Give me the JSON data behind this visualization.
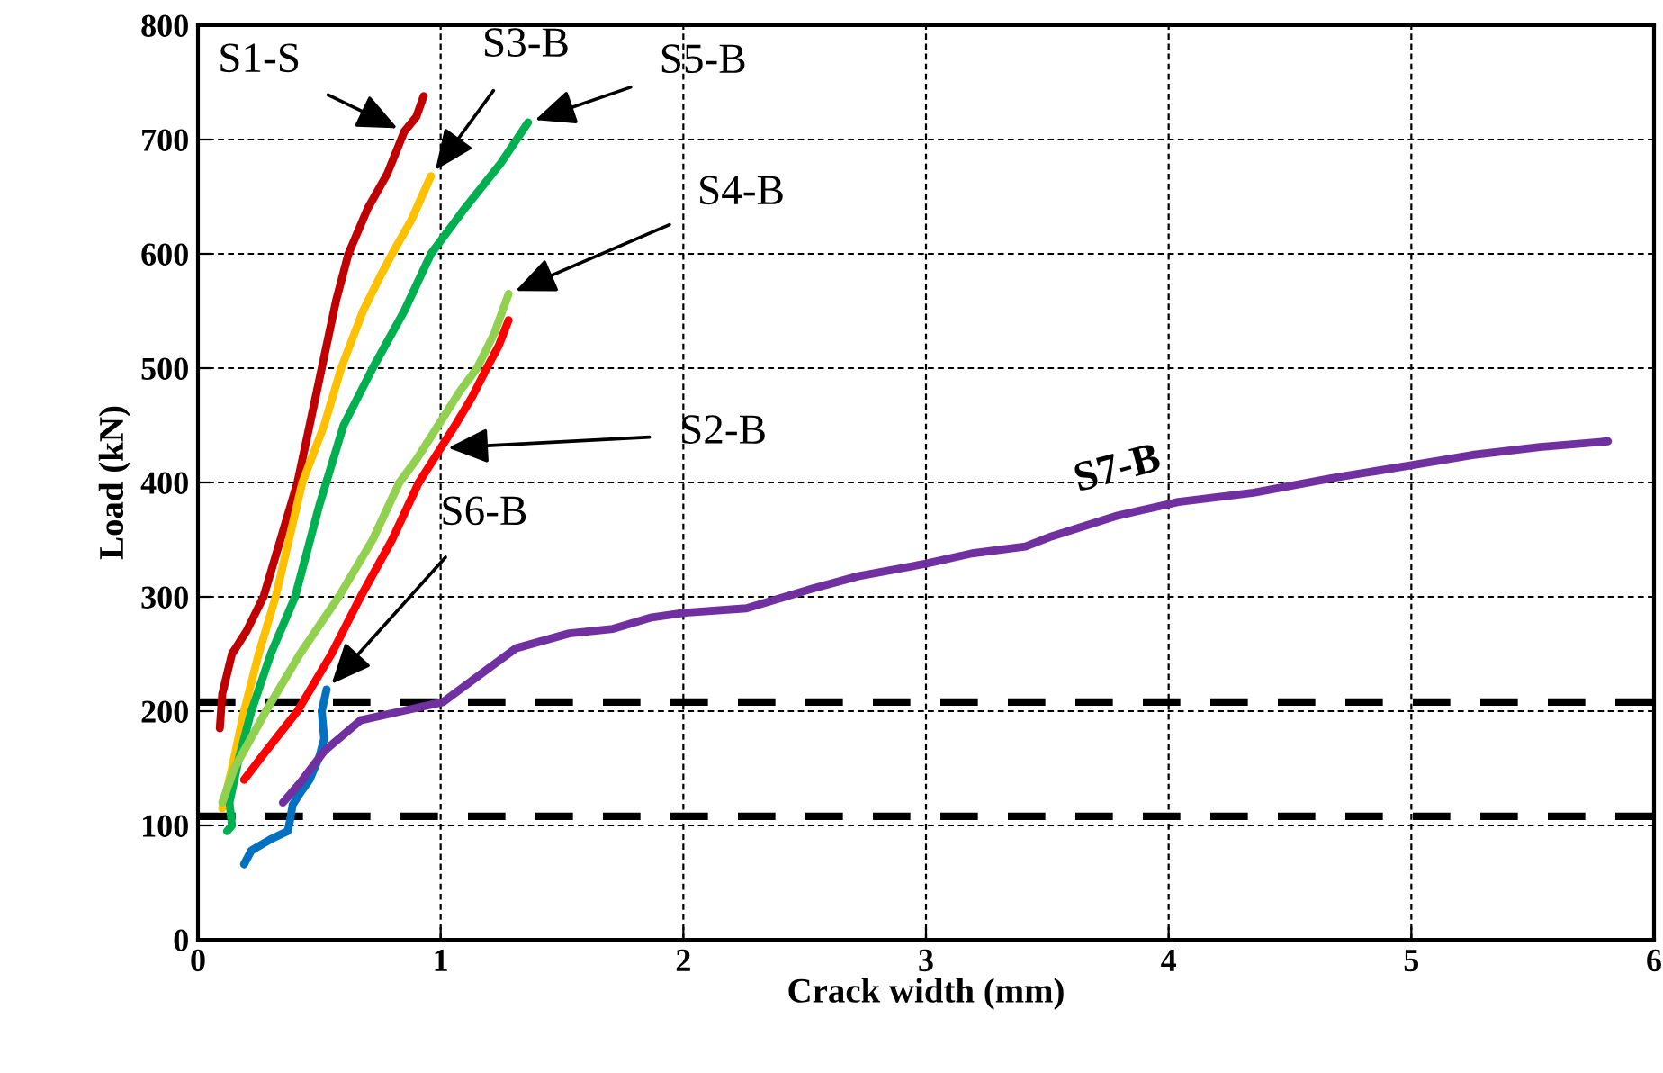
{
  "chart_data": {
    "type": "line",
    "xlabel": "Crack width (mm)",
    "ylabel": "Load (kN)",
    "xlim": [
      0,
      6
    ],
    "ylim": [
      0,
      800
    ],
    "xticks": [
      0,
      1,
      2,
      3,
      4,
      5,
      6
    ],
    "yticks": [
      0,
      100,
      200,
      300,
      400,
      500,
      600,
      700,
      800
    ],
    "grid": true,
    "legend": false,
    "marker": "none",
    "line_style": "solid",
    "ref_lines": [
      {
        "axis": "y",
        "value": 208,
        "color": "#000000",
        "line_style": "dashed"
      },
      {
        "axis": "y",
        "value": 108,
        "color": "#000000",
        "line_style": "dashed"
      }
    ],
    "series": [
      {
        "name": "S1-S",
        "color": "#c00000",
        "x": [
          0.09,
          0.1,
          0.14,
          0.2,
          0.27,
          0.34,
          0.41,
          0.46,
          0.51,
          0.57,
          0.62,
          0.7,
          0.78,
          0.85,
          0.9,
          0.93
        ],
        "values": [
          185,
          215,
          250,
          270,
          300,
          350,
          400,
          450,
          500,
          560,
          600,
          640,
          670,
          707,
          720,
          738
        ]
      },
      {
        "name": "S3-B",
        "color": "#ffc000",
        "x": [
          0.1,
          0.14,
          0.19,
          0.25,
          0.32,
          0.43,
          0.52,
          0.59,
          0.68,
          0.75,
          0.8,
          0.88,
          0.96
        ],
        "values": [
          115,
          150,
          200,
          250,
          300,
          400,
          450,
          500,
          550,
          580,
          600,
          630,
          668
        ]
      },
      {
        "name": "S5-B",
        "color": "#00b050",
        "x": [
          0.12,
          0.14,
          0.13,
          0.17,
          0.22,
          0.3,
          0.4,
          0.5,
          0.6,
          0.72,
          0.85,
          0.96,
          1.1,
          1.25,
          1.36
        ],
        "values": [
          95,
          100,
          120,
          160,
          200,
          250,
          300,
          380,
          450,
          500,
          550,
          600,
          640,
          680,
          715
        ]
      },
      {
        "name": "S4-B",
        "color": "#92d050",
        "x": [
          0.1,
          0.15,
          0.28,
          0.42,
          0.58,
          0.72,
          0.83,
          0.9,
          0.99,
          1.08,
          1.15,
          1.22,
          1.28
        ],
        "values": [
          120,
          150,
          200,
          250,
          300,
          350,
          400,
          420,
          450,
          480,
          500,
          530,
          565
        ]
      },
      {
        "name": "S2-B",
        "color": "#ff0000",
        "x": [
          0.19,
          0.28,
          0.41,
          0.55,
          0.67,
          0.8,
          0.91,
          1.0,
          1.06,
          1.13,
          1.19,
          1.24,
          1.28
        ],
        "values": [
          140,
          165,
          200,
          250,
          300,
          350,
          400,
          430,
          450,
          475,
          500,
          520,
          542
        ]
      },
      {
        "name": "S6-B",
        "color": "#0070c0",
        "x": [
          0.19,
          0.22,
          0.3,
          0.37,
          0.38,
          0.39,
          0.42,
          0.46,
          0.5,
          0.52,
          0.51,
          0.53
        ],
        "values": [
          66,
          78,
          88,
          95,
          105,
          118,
          128,
          140,
          160,
          176,
          200,
          219
        ]
      },
      {
        "name": "S7-B",
        "color": "#7030a0",
        "x": [
          0.35,
          0.42,
          0.52,
          0.67,
          0.84,
          1.01,
          1.15,
          1.31,
          1.53,
          1.71,
          1.87,
          2.0,
          2.26,
          2.53,
          2.72,
          3.0,
          3.19,
          3.41,
          3.52,
          3.79,
          4.04,
          4.35,
          4.68,
          5.0,
          5.25,
          5.53,
          5.81
        ],
        "values": [
          120,
          137,
          165,
          192,
          200,
          208,
          230,
          255,
          268,
          272,
          282,
          286,
          290,
          307,
          318,
          329,
          338,
          344,
          353,
          371,
          383,
          391,
          404,
          415,
          424,
          431,
          436
        ]
      }
    ]
  }
}
